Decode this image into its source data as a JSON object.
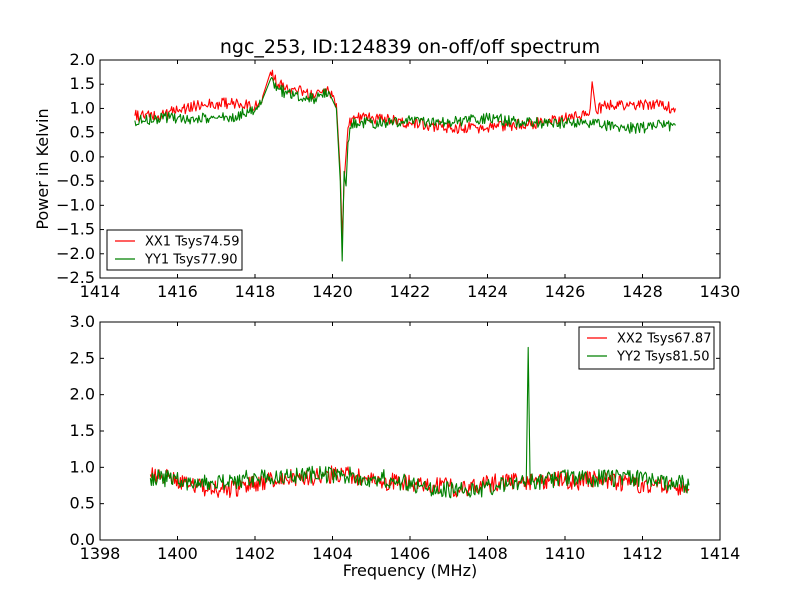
{
  "figure": {
    "title": "ngc_253, ID:124839 on-off/off spectrum",
    "xlabel": "Frequency (MHz)",
    "ylabel": "Power in Kelvin"
  },
  "chart_data": [
    {
      "type": "line",
      "title": "ngc_253, ID:124839 on-off/off spectrum",
      "xlabel": "",
      "ylabel": "Power in Kelvin",
      "xlim": [
        1414,
        1430
      ],
      "ylim": [
        -2.5,
        2.0
      ],
      "xticks": [
        1414,
        1416,
        1418,
        1420,
        1422,
        1424,
        1426,
        1428,
        1430
      ],
      "yticks": [
        -2.5,
        -2.0,
        -1.5,
        -1.0,
        -0.5,
        0.0,
        0.5,
        1.0,
        1.5,
        2.0
      ],
      "grid": false,
      "legend_position": "lower-left",
      "series": [
        {
          "name": "XX1 Tsys74.59",
          "color": "#ff0000",
          "x": [
            1414.9,
            1415.5,
            1416.0,
            1416.5,
            1417.0,
            1417.5,
            1418.0,
            1418.2,
            1418.4,
            1418.6,
            1419.0,
            1419.5,
            1419.9,
            1420.1,
            1420.2,
            1420.25,
            1420.3,
            1420.4,
            1420.5,
            1421.0,
            1421.5,
            1422.0,
            1422.5,
            1423.0,
            1423.5,
            1424.0,
            1424.5,
            1425.0,
            1425.5,
            1426.0,
            1426.5,
            1426.65,
            1426.7,
            1426.8,
            1427.0,
            1427.5,
            1428.0,
            1428.5,
            1428.85
          ],
          "y": [
            0.85,
            0.85,
            0.95,
            1.05,
            1.1,
            1.1,
            1.05,
            1.25,
            1.75,
            1.5,
            1.4,
            1.3,
            1.35,
            1.1,
            -0.3,
            -1.7,
            -0.5,
            0.6,
            0.8,
            0.8,
            0.75,
            0.7,
            0.65,
            0.6,
            0.6,
            0.6,
            0.65,
            0.7,
            0.7,
            0.8,
            0.85,
            1.0,
            1.55,
            0.95,
            1.05,
            1.05,
            1.1,
            1.05,
            1.0
          ]
        },
        {
          "name": "YY1 Tsys77.90",
          "color": "#008000",
          "x": [
            1414.9,
            1415.5,
            1416.0,
            1416.5,
            1417.0,
            1417.5,
            1418.0,
            1418.2,
            1418.4,
            1418.6,
            1419.0,
            1419.5,
            1419.9,
            1420.1,
            1420.2,
            1420.25,
            1420.3,
            1420.35,
            1420.4,
            1420.45,
            1420.5,
            1421.0,
            1421.5,
            1422.0,
            1422.5,
            1423.0,
            1423.5,
            1424.0,
            1424.5,
            1425.0,
            1425.5,
            1426.0,
            1426.5,
            1427.0,
            1427.5,
            1428.0,
            1428.5,
            1428.85
          ],
          "y": [
            0.75,
            0.8,
            0.8,
            0.8,
            0.8,
            0.85,
            0.95,
            1.2,
            1.6,
            1.4,
            1.25,
            1.2,
            1.35,
            1.0,
            -0.5,
            -2.15,
            -0.3,
            -0.6,
            0.3,
            0.6,
            0.7,
            0.7,
            0.7,
            0.75,
            0.7,
            0.7,
            0.75,
            0.8,
            0.75,
            0.7,
            0.7,
            0.7,
            0.7,
            0.65,
            0.6,
            0.6,
            0.65,
            0.65
          ]
        }
      ]
    },
    {
      "type": "line",
      "title": "",
      "xlabel": "Frequency (MHz)",
      "ylabel": "",
      "xlim": [
        1398,
        1414
      ],
      "ylim": [
        0.0,
        3.0
      ],
      "xticks": [
        1398,
        1400,
        1402,
        1404,
        1406,
        1408,
        1410,
        1412,
        1414
      ],
      "yticks": [
        0.0,
        0.5,
        1.0,
        1.5,
        2.0,
        2.5,
        3.0
      ],
      "grid": false,
      "legend_position": "top-right",
      "series": [
        {
          "name": "XX2 Tsys67.87",
          "color": "#ff0000",
          "x": [
            1399.3,
            1399.8,
            1400.3,
            1400.8,
            1401.3,
            1401.8,
            1402.3,
            1402.8,
            1403.3,
            1403.8,
            1404.3,
            1404.8,
            1405.3,
            1405.8,
            1406.3,
            1406.8,
            1407.3,
            1407.8,
            1408.3,
            1408.8,
            1409.3,
            1409.8,
            1410.3,
            1410.8,
            1411.3,
            1411.8,
            1412.3,
            1412.8,
            1413.2
          ],
          "y": [
            0.9,
            0.85,
            0.75,
            0.7,
            0.7,
            0.75,
            0.8,
            0.85,
            0.85,
            0.9,
            0.9,
            0.85,
            0.8,
            0.8,
            0.75,
            0.75,
            0.7,
            0.75,
            0.8,
            0.8,
            0.8,
            0.85,
            0.8,
            0.85,
            0.8,
            0.75,
            0.75,
            0.75,
            0.7
          ]
        },
        {
          "name": "YY2 Tsys81.50",
          "color": "#008000",
          "x": [
            1399.3,
            1399.8,
            1400.3,
            1400.8,
            1401.3,
            1401.8,
            1402.3,
            1402.8,
            1403.3,
            1403.8,
            1404.3,
            1404.8,
            1405.3,
            1405.8,
            1406.3,
            1406.8,
            1407.3,
            1407.8,
            1408.3,
            1408.8,
            1409.0,
            1409.05,
            1409.1,
            1409.3,
            1409.8,
            1410.3,
            1410.8,
            1411.3,
            1411.8,
            1412.3,
            1412.8,
            1413.2
          ],
          "y": [
            0.85,
            0.85,
            0.8,
            0.8,
            0.8,
            0.85,
            0.85,
            0.9,
            0.9,
            0.9,
            0.9,
            0.85,
            0.85,
            0.8,
            0.75,
            0.7,
            0.7,
            0.7,
            0.75,
            0.75,
            0.8,
            2.65,
            0.8,
            0.8,
            0.85,
            0.85,
            0.85,
            0.85,
            0.85,
            0.8,
            0.8,
            0.75
          ]
        }
      ]
    }
  ]
}
